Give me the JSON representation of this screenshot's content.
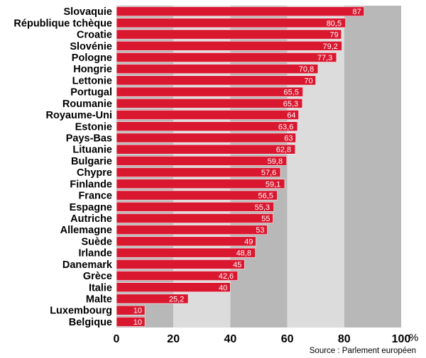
{
  "chart_data": {
    "type": "bar",
    "orientation": "horizontal",
    "categories": [
      "Slovaquie",
      "République tchèque",
      "Croatie",
      "Slovénie",
      "Pologne",
      "Hongrie",
      "Lettonie",
      "Portugal",
      "Roumanie",
      "Royaume-Uni",
      "Estonie",
      "Pays-Bas",
      "Lituanie",
      "Bulgarie",
      "Chypre",
      "Finlande",
      "France",
      "Espagne",
      "Autriche",
      "Allemagne",
      "Suède",
      "Irlande",
      "Danemark",
      "Grèce",
      "Italie",
      "Malte",
      "Luxembourg",
      "Belgique"
    ],
    "values": [
      87,
      80.5,
      79,
      79.2,
      77.3,
      70.8,
      70,
      65.5,
      65.3,
      64,
      63.6,
      63,
      62.8,
      59.8,
      57.6,
      59.1,
      56.5,
      55.3,
      55,
      53,
      49,
      48.8,
      45,
      42.6,
      40,
      25.2,
      10,
      10
    ],
    "value_labels": [
      "87",
      "80,5",
      "79",
      "79,2",
      "77,3",
      "70,8",
      "70",
      "65,5",
      "65,3",
      "64",
      "63,6",
      "63",
      "62,8",
      "59,8",
      "57,6",
      "59,1",
      "56,5",
      "55,3",
      "55",
      "53",
      "49",
      "48,8",
      "45",
      "42,6",
      "40",
      "25,2",
      "10",
      "10"
    ],
    "xlim": [
      0,
      100
    ],
    "x_ticks": [
      "0",
      "20",
      "40",
      "60",
      "80",
      "100"
    ],
    "unit": "%",
    "source": "Source : Parlement européen",
    "colors": {
      "bar": "#d9172f",
      "band_dark": "#b8b8b8",
      "band_light": "#dcdcdc"
    }
  }
}
